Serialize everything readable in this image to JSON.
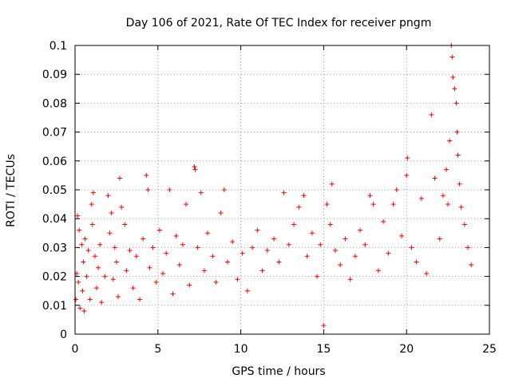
{
  "chart_data": {
    "type": "scatter",
    "title": "Day 106 of 2021, Rate Of TEC Index for receiver pngm",
    "xlabel": "GPS time / hours",
    "ylabel": "ROTI / TECUs",
    "xlim": [
      0,
      25
    ],
    "ylim": [
      0,
      0.1
    ],
    "xticks": [
      0,
      5,
      10,
      15,
      20,
      25
    ],
    "yticks": [
      0,
      0.01,
      0.02,
      0.03,
      0.04,
      0.05,
      0.06,
      0.07,
      0.08,
      0.09,
      0.1
    ],
    "xtick_labels": [
      "0",
      "5",
      "10",
      "15",
      "20",
      "25"
    ],
    "ytick_labels": [
      "0",
      "0.01",
      "0.02",
      "0.03",
      "0.04",
      "0.05",
      "0.06",
      "0.07",
      "0.08",
      "0.09",
      "0.1"
    ],
    "grid": true,
    "marker": "+",
    "colors": {
      "points": "#ff0000",
      "grid": "#a0a0a0",
      "axes": "#000000"
    },
    "series": [
      {
        "name": "ROTI",
        "points": [
          [
            0.05,
            0.012
          ],
          [
            0.1,
            0.021
          ],
          [
            0.15,
            0.041
          ],
          [
            0.2,
            0.018
          ],
          [
            0.25,
            0.036
          ],
          [
            0.3,
            0.009
          ],
          [
            0.4,
            0.031
          ],
          [
            0.45,
            0.015
          ],
          [
            0.5,
            0.025
          ],
          [
            0.55,
            0.008
          ],
          [
            0.6,
            0.033
          ],
          [
            0.7,
            0.02
          ],
          [
            0.8,
            0.029
          ],
          [
            0.9,
            0.012
          ],
          [
            1.0,
            0.045
          ],
          [
            1.05,
            0.038
          ],
          [
            1.1,
            0.049
          ],
          [
            1.2,
            0.027
          ],
          [
            1.3,
            0.016
          ],
          [
            1.4,
            0.023
          ],
          [
            1.5,
            0.031
          ],
          [
            1.6,
            0.011
          ],
          [
            1.8,
            0.02
          ],
          [
            2.0,
            0.048
          ],
          [
            2.1,
            0.035
          ],
          [
            2.2,
            0.042
          ],
          [
            2.3,
            0.019
          ],
          [
            2.4,
            0.03
          ],
          [
            2.5,
            0.025
          ],
          [
            2.6,
            0.013
          ],
          [
            2.7,
            0.054
          ],
          [
            2.8,
            0.044
          ],
          [
            3.0,
            0.038
          ],
          [
            3.1,
            0.022
          ],
          [
            3.3,
            0.029
          ],
          [
            3.5,
            0.016
          ],
          [
            3.7,
            0.027
          ],
          [
            3.9,
            0.012
          ],
          [
            4.1,
            0.033
          ],
          [
            4.3,
            0.055
          ],
          [
            4.4,
            0.05
          ],
          [
            4.5,
            0.023
          ],
          [
            4.7,
            0.03
          ],
          [
            4.9,
            0.018
          ],
          [
            5.1,
            0.036
          ],
          [
            5.3,
            0.021
          ],
          [
            5.5,
            0.028
          ],
          [
            5.7,
            0.05
          ],
          [
            5.9,
            0.014
          ],
          [
            6.1,
            0.034
          ],
          [
            6.3,
            0.024
          ],
          [
            6.5,
            0.031
          ],
          [
            6.7,
            0.045
          ],
          [
            6.9,
            0.017
          ],
          [
            7.2,
            0.058
          ],
          [
            7.25,
            0.057
          ],
          [
            7.4,
            0.03
          ],
          [
            7.6,
            0.049
          ],
          [
            7.8,
            0.022
          ],
          [
            8.0,
            0.035
          ],
          [
            8.3,
            0.027
          ],
          [
            8.5,
            0.018
          ],
          [
            8.8,
            0.042
          ],
          [
            9.0,
            0.05
          ],
          [
            9.2,
            0.025
          ],
          [
            9.5,
            0.032
          ],
          [
            9.8,
            0.019
          ],
          [
            10.1,
            0.028
          ],
          [
            10.4,
            0.015
          ],
          [
            10.7,
            0.03
          ],
          [
            11.0,
            0.036
          ],
          [
            11.3,
            0.022
          ],
          [
            11.6,
            0.029
          ],
          [
            12.0,
            0.033
          ],
          [
            12.3,
            0.025
          ],
          [
            12.6,
            0.049
          ],
          [
            12.9,
            0.031
          ],
          [
            13.2,
            0.038
          ],
          [
            13.5,
            0.044
          ],
          [
            13.8,
            0.048
          ],
          [
            14.0,
            0.027
          ],
          [
            14.3,
            0.035
          ],
          [
            14.6,
            0.02
          ],
          [
            14.8,
            0.031
          ],
          [
            15.0,
            0.003
          ],
          [
            15.2,
            0.045
          ],
          [
            15.4,
            0.038
          ],
          [
            15.5,
            0.052
          ],
          [
            15.7,
            0.029
          ],
          [
            16.0,
            0.024
          ],
          [
            16.3,
            0.033
          ],
          [
            16.6,
            0.019
          ],
          [
            16.9,
            0.027
          ],
          [
            17.2,
            0.036
          ],
          [
            17.5,
            0.031
          ],
          [
            17.8,
            0.048
          ],
          [
            18.0,
            0.045
          ],
          [
            18.3,
            0.022
          ],
          [
            18.6,
            0.039
          ],
          [
            18.9,
            0.028
          ],
          [
            19.2,
            0.045
          ],
          [
            19.4,
            0.05
          ],
          [
            19.7,
            0.034
          ],
          [
            20.0,
            0.055
          ],
          [
            20.05,
            0.061
          ],
          [
            20.3,
            0.03
          ],
          [
            20.6,
            0.025
          ],
          [
            20.9,
            0.047
          ],
          [
            21.2,
            0.021
          ],
          [
            21.5,
            0.076
          ],
          [
            21.7,
            0.054
          ],
          [
            22.0,
            0.033
          ],
          [
            22.2,
            0.048
          ],
          [
            22.4,
            0.057
          ],
          [
            22.5,
            0.045
          ],
          [
            22.6,
            0.067
          ],
          [
            22.7,
            0.1
          ],
          [
            22.75,
            0.096
          ],
          [
            22.8,
            0.089
          ],
          [
            22.9,
            0.085
          ],
          [
            23.0,
            0.08
          ],
          [
            23.05,
            0.07
          ],
          [
            23.1,
            0.062
          ],
          [
            23.2,
            0.052
          ],
          [
            23.3,
            0.044
          ],
          [
            23.5,
            0.038
          ],
          [
            23.7,
            0.03
          ],
          [
            23.9,
            0.024
          ]
        ]
      }
    ]
  }
}
